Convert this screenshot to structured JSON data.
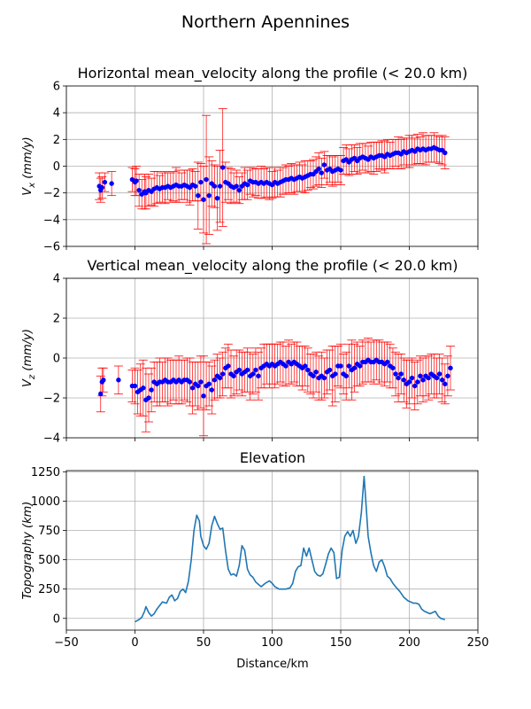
{
  "figure": {
    "title": "Northern Apennines"
  },
  "chart_data": [
    {
      "type": "scatter",
      "title": "Horizontal mean_velocity along the profile (< 20.0 km)",
      "ylabel": "V_x (mm/y)",
      "xlim": [
        -50,
        250
      ],
      "ylim": [
        -6,
        6
      ],
      "xticks": [
        -50,
        0,
        50,
        100,
        150,
        200,
        250
      ],
      "yticks": [
        -6,
        -4,
        -2,
        0,
        2,
        4,
        6
      ],
      "show_x_ticklabels": false,
      "grid": true,
      "marker_color": "#0000ff",
      "errorbar_color": "#ff0000",
      "series": [
        {
          "x": [
            -26,
            -25,
            -24,
            -22,
            -17,
            -2,
            0,
            1,
            3,
            5,
            7,
            8,
            10,
            12,
            14,
            16,
            18,
            20,
            22,
            24,
            26,
            28,
            30,
            32,
            34,
            36,
            38,
            40,
            42,
            44,
            46,
            48,
            50,
            52,
            54,
            56,
            58,
            60,
            62,
            64,
            66,
            68,
            70,
            72,
            74,
            76,
            78,
            80,
            82,
            84,
            86,
            88,
            90,
            92,
            94,
            96,
            98,
            100,
            102,
            104,
            106,
            108,
            110,
            112,
            114,
            116,
            118,
            120,
            122,
            124,
            126,
            128,
            130,
            132,
            134,
            136,
            138,
            140,
            142,
            144,
            146,
            148,
            150,
            152,
            154,
            156,
            158,
            160,
            162,
            164,
            166,
            168,
            170,
            172,
            174,
            176,
            178,
            180,
            182,
            184,
            186,
            188,
            190,
            192,
            194,
            196,
            198,
            200,
            202,
            204,
            206,
            208,
            210,
            212,
            214,
            216,
            218,
            220,
            222,
            224,
            226
          ],
          "y": [
            -1.5,
            -1.8,
            -1.6,
            -1.2,
            -1.3,
            -1.0,
            -1.2,
            -1.1,
            -1.8,
            -2.1,
            -1.9,
            -2.0,
            -1.8,
            -1.9,
            -1.7,
            -1.6,
            -1.7,
            -1.6,
            -1.6,
            -1.5,
            -1.6,
            -1.5,
            -1.4,
            -1.5,
            -1.5,
            -1.4,
            -1.5,
            -1.6,
            -1.4,
            -1.5,
            -2.2,
            -1.2,
            -2.5,
            -1.0,
            -2.2,
            -1.3,
            -1.5,
            -2.4,
            -1.5,
            -0.1,
            -1.2,
            -1.3,
            -1.5,
            -1.6,
            -1.5,
            -1.8,
            -1.5,
            -1.3,
            -1.4,
            -1.1,
            -1.2,
            -1.2,
            -1.3,
            -1.2,
            -1.3,
            -1.2,
            -1.3,
            -1.4,
            -1.2,
            -1.3,
            -1.2,
            -1.1,
            -1.0,
            -1.0,
            -0.9,
            -1.0,
            -0.9,
            -0.8,
            -0.9,
            -0.8,
            -0.7,
            -0.6,
            -0.6,
            -0.4,
            -0.2,
            -0.5,
            0.1,
            -0.3,
            -0.2,
            -0.4,
            -0.3,
            -0.2,
            -0.3,
            0.4,
            0.5,
            0.3,
            0.5,
            0.6,
            0.4,
            0.6,
            0.7,
            0.6,
            0.5,
            0.7,
            0.6,
            0.7,
            0.8,
            0.8,
            0.7,
            0.9,
            0.8,
            0.9,
            1.0,
            1.0,
            0.9,
            1.1,
            1.0,
            1.1,
            1.2,
            1.1,
            1.3,
            1.2,
            1.3,
            1.2,
            1.3,
            1.3,
            1.4,
            1.3,
            1.2,
            1.2,
            1.0
          ],
          "yerr": [
            1.0,
            0.9,
            0.8,
            0.7,
            0.9,
            0.9,
            1.0,
            1.1,
            1.2,
            1.1,
            1.3,
            1.2,
            1.2,
            1.0,
            1.3,
            1.2,
            1.0,
            1.1,
            1.2,
            1.0,
            1.1,
            1.1,
            1.3,
            1.2,
            1.0,
            1.1,
            1.2,
            1.3,
            1.2,
            1.1,
            2.5,
            1.4,
            2.5,
            4.8,
            2.9,
            1.7,
            1.6,
            2.4,
            2.7,
            4.4,
            1.5,
            1.2,
            1.3,
            1.1,
            1.2,
            1.0,
            1.0,
            1.2,
            1.1,
            1.0,
            1.1,
            1.0,
            1.1,
            1.2,
            1.1,
            1.1,
            1.2,
            1.0,
            1.1,
            1.0,
            1.1,
            1.0,
            1.1,
            1.0,
            1.1,
            1.1,
            1.0,
            1.1,
            1.0,
            1.2,
            1.1,
            1.0,
            1.1,
            1.1,
            1.2,
            1.1,
            1.0,
            1.1,
            1.0,
            1.1,
            1.1,
            1.0,
            1.1,
            1.0,
            1.1,
            1.0,
            1.1,
            1.0,
            1.0,
            1.1,
            1.0,
            1.1,
            1.0,
            1.1,
            1.2,
            1.1,
            1.0,
            1.1,
            1.2,
            1.1,
            1.0,
            1.1,
            1.0,
            1.2,
            1.1,
            1.0,
            1.1,
            1.2,
            1.1,
            1.0,
            1.1,
            1.0,
            1.2,
            1.1,
            1.0,
            1.0,
            1.1,
            1.0,
            1.0,
            1.1,
            1.2
          ]
        }
      ]
    },
    {
      "type": "scatter",
      "title": "Vertical mean_velocity along the profile (< 20.0 km)",
      "ylabel": "V_z (mm/y)",
      "xlim": [
        -50,
        250
      ],
      "ylim": [
        -4,
        4
      ],
      "xticks": [
        -50,
        0,
        50,
        100,
        150,
        200,
        250
      ],
      "yticks": [
        -4,
        -2,
        0,
        2,
        4
      ],
      "show_x_ticklabels": false,
      "grid": true,
      "marker_color": "#0000ff",
      "errorbar_color": "#ff0000",
      "series": [
        {
          "x": [
            -25,
            -24,
            -23,
            -12,
            -2,
            0,
            2,
            4,
            6,
            8,
            10,
            12,
            14,
            16,
            18,
            20,
            22,
            24,
            26,
            28,
            30,
            32,
            34,
            36,
            38,
            40,
            42,
            44,
            46,
            48,
            50,
            52,
            54,
            56,
            58,
            60,
            62,
            64,
            66,
            68,
            70,
            72,
            74,
            76,
            78,
            80,
            82,
            84,
            86,
            88,
            90,
            92,
            94,
            96,
            98,
            100,
            102,
            104,
            106,
            108,
            110,
            112,
            114,
            116,
            118,
            120,
            122,
            124,
            126,
            128,
            130,
            132,
            134,
            136,
            138,
            140,
            142,
            144,
            146,
            148,
            150,
            152,
            154,
            156,
            158,
            160,
            162,
            164,
            166,
            168,
            170,
            172,
            174,
            176,
            178,
            180,
            182,
            184,
            186,
            188,
            190,
            192,
            194,
            196,
            198,
            200,
            202,
            204,
            206,
            208,
            210,
            212,
            214,
            216,
            218,
            220,
            222,
            224,
            226,
            228,
            230
          ],
          "y": [
            -1.8,
            -1.2,
            -1.1,
            -1.1,
            -1.4,
            -1.4,
            -1.7,
            -1.6,
            -1.5,
            -2.1,
            -2.0,
            -1.6,
            -1.2,
            -1.3,
            -1.2,
            -1.2,
            -1.1,
            -1.2,
            -1.2,
            -1.1,
            -1.2,
            -1.1,
            -1.2,
            -1.1,
            -1.1,
            -1.2,
            -1.5,
            -1.3,
            -1.4,
            -1.2,
            -1.9,
            -1.4,
            -1.3,
            -1.6,
            -1.1,
            -0.9,
            -1.0,
            -0.8,
            -0.5,
            -0.4,
            -0.8,
            -0.9,
            -0.7,
            -0.6,
            -0.8,
            -0.7,
            -0.6,
            -0.9,
            -0.8,
            -0.6,
            -0.9,
            -0.5,
            -0.4,
            -0.3,
            -0.4,
            -0.3,
            -0.4,
            -0.3,
            -0.2,
            -0.3,
            -0.4,
            -0.2,
            -0.3,
            -0.2,
            -0.3,
            -0.4,
            -0.5,
            -0.4,
            -0.6,
            -0.8,
            -0.9,
            -0.7,
            -1.0,
            -0.9,
            -1.0,
            -0.7,
            -0.6,
            -0.9,
            -0.8,
            -0.4,
            -0.4,
            -0.8,
            -0.9,
            -0.4,
            -0.6,
            -0.5,
            -0.3,
            -0.4,
            -0.2,
            -0.2,
            -0.1,
            -0.2,
            -0.2,
            -0.1,
            -0.2,
            -0.2,
            -0.3,
            -0.2,
            -0.4,
            -0.5,
            -0.8,
            -1.0,
            -0.8,
            -1.1,
            -1.3,
            -1.2,
            -1.0,
            -1.4,
            -1.2,
            -0.9,
            -1.1,
            -0.9,
            -1.0,
            -0.8,
            -0.9,
            -1.0,
            -0.8,
            -1.1,
            -1.3,
            -0.9,
            -0.5
          ],
          "yerr": [
            0.9,
            0.7,
            0.6,
            0.7,
            0.8,
            0.9,
            1.1,
            1.3,
            1.4,
            1.6,
            1.2,
            1.1,
            1.0,
            1.1,
            1.2,
            1.0,
            1.1,
            1.2,
            1.1,
            1.0,
            1.1,
            1.2,
            1.1,
            1.0,
            1.1,
            1.2,
            1.3,
            1.1,
            1.2,
            1.3,
            2.0,
            1.2,
            1.1,
            1.2,
            1.0,
            1.1,
            1.0,
            1.1,
            1.0,
            1.1,
            1.2,
            1.0,
            1.1,
            1.0,
            1.1,
            1.0,
            1.1,
            1.2,
            1.0,
            1.1,
            1.2,
            1.0,
            1.1,
            1.0,
            1.1,
            1.0,
            1.1,
            1.0,
            1.0,
            1.1,
            1.0,
            1.1,
            1.0,
            1.0,
            1.1,
            1.0,
            1.1,
            1.0,
            1.1,
            1.0,
            1.1,
            1.0,
            1.1,
            1.2,
            1.0,
            1.1,
            1.0,
            1.5,
            1.4,
            1.0,
            1.1,
            1.0,
            1.2,
            1.1,
            1.5,
            1.2,
            1.1,
            1.0,
            1.1,
            1.0,
            1.1,
            1.0,
            1.1,
            1.0,
            1.1,
            1.0,
            1.1,
            1.0,
            1.1,
            1.0,
            1.1,
            1.2,
            1.0,
            1.1,
            1.2,
            1.1,
            1.0,
            1.2,
            1.1,
            1.0,
            1.1,
            1.0,
            1.1,
            1.0,
            1.1,
            1.0,
            1.0,
            1.1,
            1.0,
            1.0,
            1.1
          ]
        }
      ]
    },
    {
      "type": "line",
      "title": "Elevation",
      "xlabel": "Distance/km",
      "ylabel": "Topography (km)",
      "xlim": [
        -50,
        250
      ],
      "ylim": [
        -100,
        1260
      ],
      "xticks": [
        -50,
        0,
        50,
        100,
        150,
        200,
        250
      ],
      "yticks": [
        0,
        250,
        500,
        750,
        1000,
        1250
      ],
      "grid": true,
      "line_color": "#1f77b4",
      "series": [
        {
          "x": [
            0,
            3,
            5,
            7,
            8,
            10,
            12,
            14,
            16,
            18,
            20,
            23,
            25,
            27,
            29,
            31,
            33,
            35,
            37,
            39,
            41,
            43,
            45,
            47,
            48,
            50,
            52,
            54,
            56,
            58,
            60,
            62,
            64,
            66,
            68,
            70,
            72,
            74,
            76,
            78,
            80,
            82,
            84,
            86,
            88,
            90,
            92,
            95,
            98,
            100,
            102,
            105,
            108,
            110,
            113,
            115,
            117,
            119,
            121,
            123,
            125,
            127,
            129,
            131,
            133,
            135,
            137,
            139,
            141,
            143,
            145,
            147,
            149,
            151,
            153,
            155,
            157,
            159,
            161,
            163,
            165,
            167,
            168,
            170,
            172,
            174,
            176,
            178,
            180,
            182,
            184,
            186,
            188,
            190,
            193,
            196,
            199,
            201,
            203,
            205,
            207,
            209,
            211,
            213,
            215,
            217,
            219,
            221,
            223,
            226
          ],
          "y": [
            -30,
            -10,
            10,
            60,
            100,
            50,
            20,
            40,
            80,
            110,
            140,
            130,
            180,
            200,
            150,
            170,
            230,
            250,
            220,
            320,
            500,
            750,
            880,
            830,
            700,
            620,
            590,
            640,
            790,
            870,
            810,
            760,
            770,
            580,
            420,
            370,
            380,
            360,
            450,
            620,
            580,
            420,
            370,
            350,
            310,
            290,
            270,
            300,
            320,
            300,
            270,
            250,
            250,
            250,
            260,
            300,
            400,
            440,
            450,
            600,
            530,
            600,
            500,
            400,
            370,
            360,
            380,
            460,
            550,
            600,
            560,
            340,
            350,
            580,
            700,
            740,
            700,
            750,
            640,
            700,
            900,
            1210,
            1050,
            700,
            560,
            450,
            400,
            480,
            500,
            440,
            360,
            340,
            300,
            270,
            230,
            180,
            150,
            140,
            130,
            130,
            120,
            80,
            60,
            50,
            40,
            50,
            60,
            20,
            0,
            -10
          ]
        }
      ]
    }
  ]
}
